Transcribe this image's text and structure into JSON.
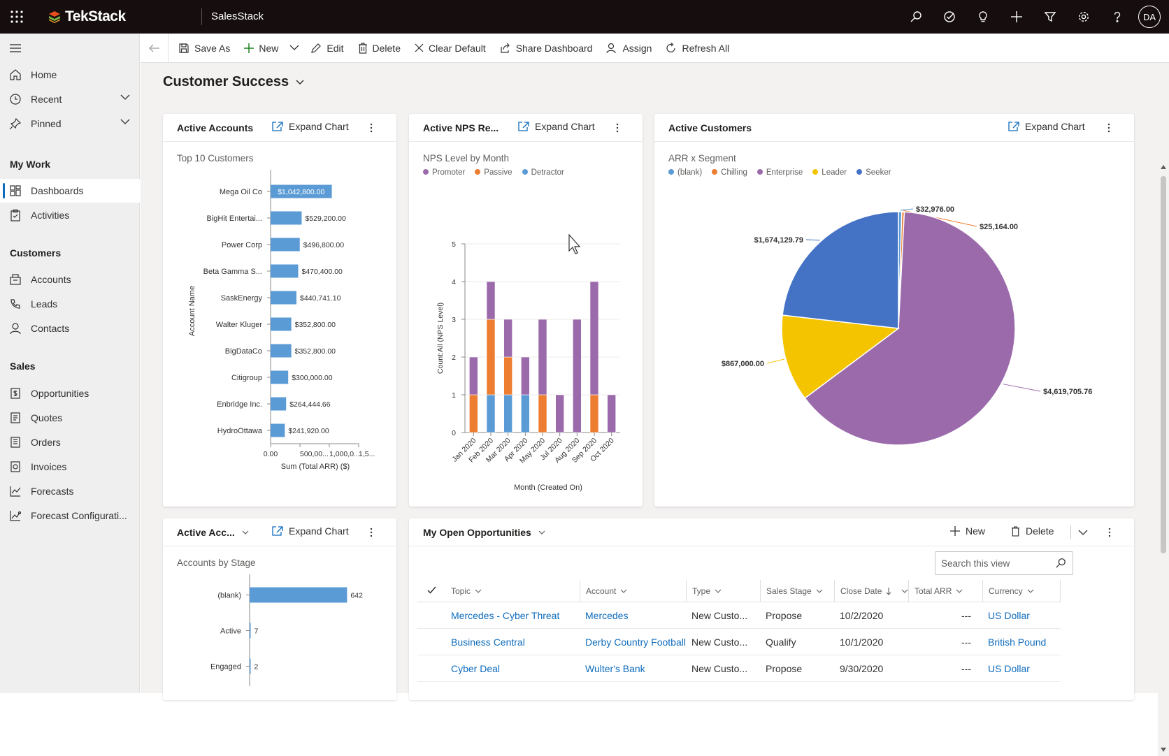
{
  "topbar": {
    "brand": "TekStack",
    "app": "SalesStack",
    "avatar": "DA"
  },
  "commands": {
    "save_as": "Save As",
    "new": "New",
    "edit": "Edit",
    "delete": "Delete",
    "clear_default": "Clear Default",
    "share": "Share Dashboard",
    "assign": "Assign",
    "refresh": "Refresh All"
  },
  "sidebar": {
    "home": "Home",
    "recent": "Recent",
    "pinned": "Pinned",
    "my_work": "My Work",
    "dashboards": "Dashboards",
    "activities": "Activities",
    "customers": "Customers",
    "accounts": "Accounts",
    "leads": "Leads",
    "contacts": "Contacts",
    "sales": "Sales",
    "opportunities": "Opportunities",
    "quotes": "Quotes",
    "orders": "Orders",
    "invoices": "Invoices",
    "forecasts": "Forecasts",
    "forecast_config": "Forecast Configurati..."
  },
  "dashboard": {
    "title": "Customer Success",
    "expand": "Expand Chart"
  },
  "card1": {
    "title": "Active Accounts",
    "subtitle": "Top 10 Customers"
  },
  "card2": {
    "title": "Active NPS Re...",
    "subtitle": "NPS Level by Month"
  },
  "card3": {
    "title": "Active Customers",
    "subtitle": "ARR x Segment"
  },
  "card4": {
    "title": "Active Acc...",
    "subtitle": "Accounts by Stage"
  },
  "chart_data": [
    {
      "type": "bar",
      "orientation": "horizontal",
      "categories": [
        "Mega Oil Co",
        "BigHit Entertai...",
        "Power Corp",
        "Beta Gamma S...",
        "SaskEnergy",
        "Walter Kluger",
        "BigDataCo",
        "Citigroup",
        "Enbridge Inc.",
        "HydroOttawa"
      ],
      "values": [
        1042800,
        529200,
        496800,
        470400,
        440741.1,
        352800,
        352800,
        300000,
        264444.66,
        241920
      ],
      "labels": [
        "$1,042,800.00",
        "$529,200.00",
        "$496,800.00",
        "$470,400.00",
        "$440,741.10",
        "$352,800.00",
        "$352,800.00",
        "$300,000.00",
        "$264,444.66",
        "$241,920.00"
      ],
      "xlabel": "Sum (Total ARR) ($)",
      "ylabel": "Account Name",
      "x_tick_labels": [
        "0.00",
        "500,00...",
        "1,000,0...",
        "1,5..."
      ],
      "xlim": [
        0,
        1500000
      ]
    },
    {
      "type": "bar",
      "stacked": true,
      "categories": [
        "Jan 2020",
        "Feb 2020",
        "Mar 2020",
        "Apr 2020",
        "May 2020",
        "Jul 2020",
        "Aug 2020",
        "Sep 2020",
        "Oct 2020"
      ],
      "series": [
        {
          "name": "Detractor",
          "color": "#5b9bd5",
          "values": [
            0,
            1,
            1,
            1,
            0,
            0,
            0,
            0,
            0
          ]
        },
        {
          "name": "Passive",
          "color": "#ed7d31",
          "values": [
            1,
            2,
            1,
            0,
            1,
            0,
            0,
            1,
            0
          ]
        },
        {
          "name": "Promoter",
          "color": "#9b6aab",
          "values": [
            1,
            1,
            1,
            1,
            2,
            1,
            3,
            3,
            1
          ]
        }
      ],
      "legend": [
        "Promoter",
        "Passive",
        "Detractor"
      ],
      "xlabel": "Month (Created On)",
      "ylabel": "Count:All (NPS Level)",
      "ylim": [
        0,
        5
      ],
      "yticks": [
        0,
        1,
        2,
        3,
        4,
        5
      ]
    },
    {
      "type": "pie",
      "slices": [
        {
          "name": "(blank)",
          "value": 32976,
          "label": "$32,976.00",
          "color": "#5b9bd5"
        },
        {
          "name": "Chilling",
          "value": 25164,
          "label": "$25,164.00",
          "color": "#ed7d31"
        },
        {
          "name": "Enterprise",
          "value": 4619705.76,
          "label": "$4,619,705.76",
          "color": "#9b6aab"
        },
        {
          "name": "Leader",
          "value": 867000,
          "label": "$867,000.00",
          "color": "#f5c400"
        },
        {
          "name": "Seeker",
          "value": 1674129.79,
          "label": "$1,674,129.79",
          "color": "#4472c4"
        }
      ],
      "legend": [
        "(blank)",
        "Chilling",
        "Enterprise",
        "Leader",
        "Seeker"
      ]
    },
    {
      "type": "bar",
      "orientation": "horizontal",
      "categories": [
        "(blank)",
        "Active",
        "Engaged"
      ],
      "values": [
        642,
        7,
        2
      ],
      "xlim": [
        0,
        700
      ]
    }
  ],
  "opps": {
    "title": "My Open Opportunities",
    "new": "New",
    "delete": "Delete",
    "search_placeholder": "Search this view",
    "columns": [
      "Topic",
      "Account",
      "Type",
      "Sales Stage",
      "Close Date",
      "Total ARR",
      "Currency"
    ],
    "rows": [
      {
        "topic": "Mercedes - Cyber Threat",
        "account": "Mercedes",
        "type": "New Custo...",
        "stage": "Propose",
        "close": "10/2/2020",
        "arr": "---",
        "currency": "US Dollar"
      },
      {
        "topic": "Business Central",
        "account": "Derby Country Football Club",
        "type": "New Custo...",
        "stage": "Qualify",
        "close": "10/1/2020",
        "arr": "---",
        "currency": "British Pound"
      },
      {
        "topic": "Cyber Deal",
        "account": "Wulter's Bank",
        "type": "New Custo...",
        "stage": "Propose",
        "close": "9/30/2020",
        "arr": "---",
        "currency": "US Dollar"
      }
    ]
  }
}
